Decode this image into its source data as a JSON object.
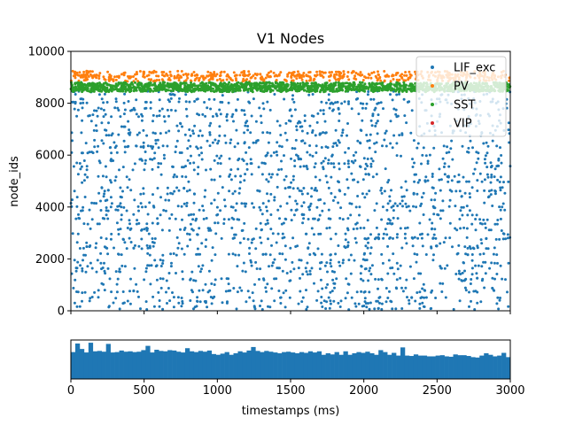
{
  "chart_data": [
    {
      "type": "scatter",
      "title": "V1 Nodes",
      "xlabel": "",
      "ylabel": "node_ids",
      "xlim": [
        0,
        3000
      ],
      "ylim": [
        0,
        10000
      ],
      "yticks": [
        0,
        2000,
        4000,
        6000,
        8000,
        10000
      ],
      "xticks_labels_visible": false,
      "grid": false,
      "legend_position": "top-right",
      "series": [
        {
          "name": "LIF_exc",
          "color": "#1f77b4",
          "marker": "dot",
          "id_range": [
            0,
            8500
          ],
          "rows": 70,
          "approx_spikes_per_row": 30
        },
        {
          "name": "PV",
          "color": "#ff7f0e",
          "marker": "dot",
          "id_range": [
            8850,
            9250
          ],
          "rows": 8,
          "approx_spikes_per_row": 65
        },
        {
          "name": "SST",
          "color": "#2ca02c",
          "marker": "dot",
          "id_range": [
            8450,
            8800
          ],
          "rows": 14,
          "approx_spikes_per_row": 120
        },
        {
          "name": "VIP",
          "color": "#d62728",
          "marker": "dot",
          "id_range": [],
          "rows": 0,
          "approx_spikes_per_row": 0
        }
      ]
    },
    {
      "type": "bar",
      "title": "",
      "xlabel": "timestamps (ms)",
      "ylabel": "",
      "xlim": [
        0,
        3000
      ],
      "xticks": [
        0,
        500,
        1000,
        1500,
        2000,
        2500,
        3000
      ],
      "yticks_visible": false,
      "bin_width": 30,
      "color": "#1f77b4",
      "values": [
        0.69,
        0.91,
        0.77,
        0.68,
        0.93,
        0.71,
        0.72,
        0.7,
        0.9,
        0.68,
        0.69,
        0.73,
        0.7,
        0.71,
        0.69,
        0.7,
        0.74,
        0.85,
        0.68,
        0.75,
        0.72,
        0.71,
        0.74,
        0.73,
        0.7,
        0.68,
        0.79,
        0.71,
        0.69,
        0.72,
        0.7,
        0.73,
        0.64,
        0.62,
        0.65,
        0.69,
        0.62,
        0.66,
        0.71,
        0.68,
        0.73,
        0.82,
        0.72,
        0.69,
        0.72,
        0.7,
        0.68,
        0.66,
        0.69,
        0.7,
        0.68,
        0.66,
        0.69,
        0.67,
        0.71,
        0.68,
        0.71,
        0.62,
        0.66,
        0.63,
        0.69,
        0.62,
        0.71,
        0.62,
        0.66,
        0.69,
        0.67,
        0.7,
        0.66,
        0.62,
        0.74,
        0.69,
        0.62,
        0.67,
        0.6,
        0.81,
        0.6,
        0.59,
        0.63,
        0.6,
        0.6,
        0.58,
        0.58,
        0.6,
        0.61,
        0.58,
        0.57,
        0.63,
        0.61,
        0.61,
        0.59,
        0.56,
        0.55,
        0.6,
        0.66,
        0.62,
        0.58,
        0.6,
        0.67,
        0.56
      ]
    }
  ]
}
